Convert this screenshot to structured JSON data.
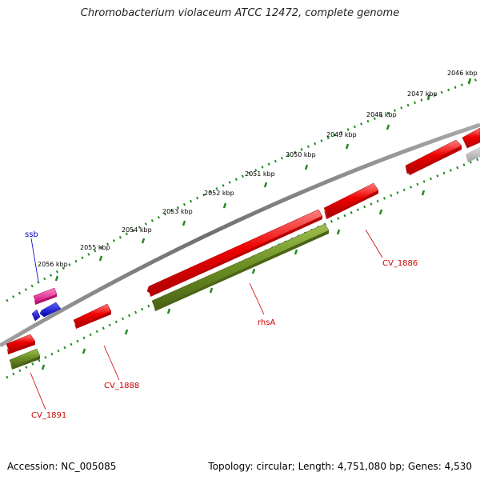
{
  "title": "Chromobacterium violaceum ATCC 12472, complete genome",
  "footer": {
    "accession": "Accession: NC_005085",
    "summary": "Topology: circular; Length: 4,751,080 bp; Genes: 4,530"
  },
  "ticks": [
    {
      "label": "2046 kbp"
    },
    {
      "label": "2047 kbp"
    },
    {
      "label": "2048 kbp"
    },
    {
      "label": "2049 kbp"
    },
    {
      "label": "2050 kbp"
    },
    {
      "label": "2051 kbp"
    },
    {
      "label": "2052 kbp"
    },
    {
      "label": "2053 kbp"
    },
    {
      "label": "2054 kbp"
    },
    {
      "label": "2055 kbp"
    },
    {
      "label": "2056 kbp"
    }
  ],
  "gene_labels": [
    {
      "name": "ssb",
      "color": "#0000cc"
    },
    {
      "name": "CV_1886",
      "color": "#cc0000"
    },
    {
      "name": "rhsA",
      "color": "#cc0000"
    },
    {
      "name": "CV_1888",
      "color": "#cc0000"
    },
    {
      "name": "CV_1891",
      "color": "#cc0000"
    }
  ],
  "colors": {
    "backbone": "#808080",
    "cds": "#ee0000",
    "gene": "#6b8e23",
    "ssb_pink": "#ee1493",
    "blue": "#0000ee",
    "grey_gene": "#bdbdbd",
    "scale_dots": "#228b22"
  }
}
